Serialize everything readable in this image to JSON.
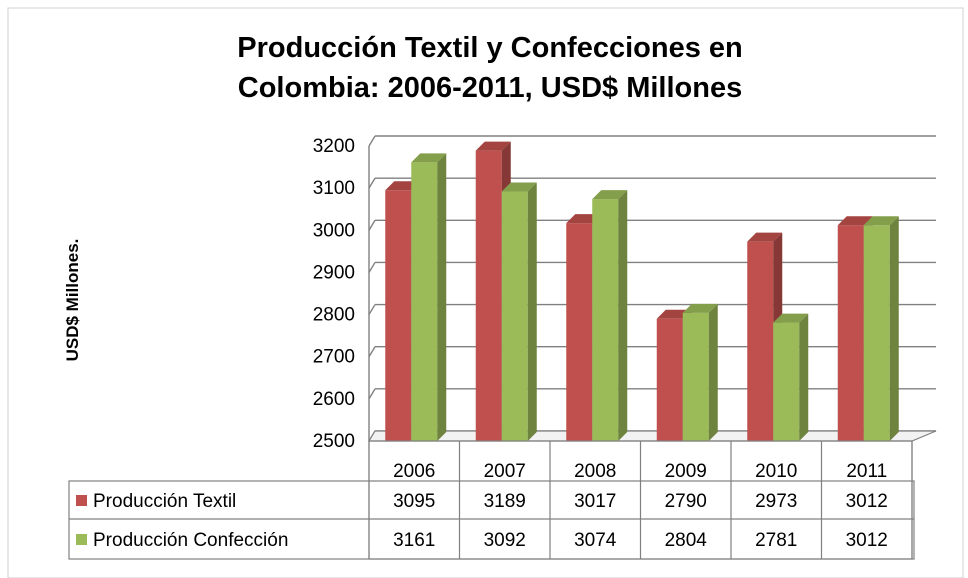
{
  "chart_data": {
    "type": "bar",
    "title": "Producción Textil y Confecciones en Colombia: 2006-2011, USD$ Millones",
    "title_lines": [
      "Producción Textil y Confecciones en",
      "Colombia: 2006-2011, USD$ Millones"
    ],
    "xlabel": "",
    "ylabel": "USD$ Millones.",
    "categories": [
      "2006",
      "2007",
      "2008",
      "2009",
      "2010",
      "2011"
    ],
    "ylim": [
      2500,
      3200
    ],
    "yticks": [
      "2500",
      "2600",
      "2700",
      "2800",
      "2900",
      "3000",
      "3100",
      "3200"
    ],
    "grid": true,
    "legend": "data-table",
    "style": "3d-clustered-column",
    "series": [
      {
        "name": "Producción Textil",
        "values": [
          3095,
          3189,
          3017,
          2790,
          2973,
          3012
        ],
        "color": "#c0504d"
      },
      {
        "name": "Producción Confección",
        "values": [
          3161,
          3092,
          3074,
          2804,
          2781,
          3012
        ],
        "color": "#9bbb59"
      }
    ],
    "table": {
      "rows": [
        {
          "label": "Producción Textil",
          "values": [
            "3095",
            "3189",
            "3017",
            "2790",
            "2973",
            "3012"
          ]
        },
        {
          "label": "Producción Confección",
          "values": [
            "3161",
            "3092",
            "3074",
            "2804",
            "2781",
            "3012"
          ]
        }
      ]
    }
  }
}
